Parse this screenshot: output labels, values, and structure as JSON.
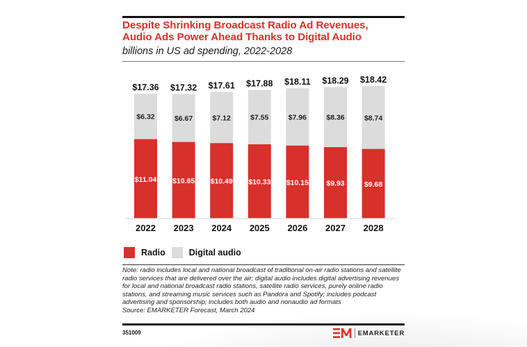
{
  "header": {
    "title_line1": "Despite Shrinking Broadcast Radio Ad Revenues,",
    "title_line2": "Audio Ads Power Ahead Thanks to Digital Audio",
    "subtitle": "billions in US ad spending, 2022-2028"
  },
  "colors": {
    "brand_red": "#d8302b",
    "radio": "#d8302b",
    "digital_audio": "#dcdcdc",
    "text": "#111111"
  },
  "chart_data": {
    "type": "bar",
    "stacked": true,
    "title": "Despite Shrinking Broadcast Radio Ad Revenues, Audio Ads Power Ahead Thanks to Digital Audio",
    "subtitle": "billions in US ad spending, 2022-2028",
    "xlabel": "",
    "ylabel": "",
    "categories": [
      "2022",
      "2023",
      "2024",
      "2025",
      "2026",
      "2027",
      "2028"
    ],
    "series": [
      {
        "name": "Radio",
        "color": "#d8302b",
        "values": [
          11.04,
          10.65,
          10.49,
          10.33,
          10.15,
          9.93,
          9.68
        ],
        "labels": [
          "$11.04",
          "$10.65",
          "$10.49",
          "$10.33",
          "$10.15",
          "$9.93",
          "$9.68"
        ]
      },
      {
        "name": "Digital audio",
        "color": "#dcdcdc",
        "values": [
          6.32,
          6.67,
          7.12,
          7.55,
          7.96,
          8.36,
          8.74
        ],
        "labels": [
          "$6.32",
          "$6.67",
          "$7.12",
          "$7.55",
          "$7.96",
          "$8.36",
          "$8.74"
        ]
      }
    ],
    "totals": [
      17.36,
      17.32,
      17.61,
      17.88,
      18.11,
      18.29,
      18.42
    ],
    "total_labels": [
      "$17.36",
      "$17.32",
      "$17.61",
      "$17.88",
      "$18.11",
      "$18.29",
      "$18.42"
    ],
    "ylim": [
      0,
      18.42
    ],
    "grid": false,
    "y_axis_visible": false,
    "legend_position": "bottom-left"
  },
  "legend": {
    "items": [
      {
        "label": "Radio",
        "color": "#d8302b"
      },
      {
        "label": "Digital audio",
        "color": "#dcdcdc"
      }
    ]
  },
  "note": {
    "text": "Note: radio includes local and national broadcast of traditional on-air radio stations and satellite radio services that are delivered over the air; digital audio includes digital advertising revenues for local and national broadcast radio stations, satellite radio services, purely online radio stations, and streaming music services such as Pandora and Spotify; includes podcast advertising and sponsorship; includes both audio and nonaudio ad formats",
    "source": "Source: EMARKETER Forecast, March 2024"
  },
  "footer": {
    "chart_id": "351009",
    "brand": "EMARKETER",
    "logo_mark": "EM"
  }
}
